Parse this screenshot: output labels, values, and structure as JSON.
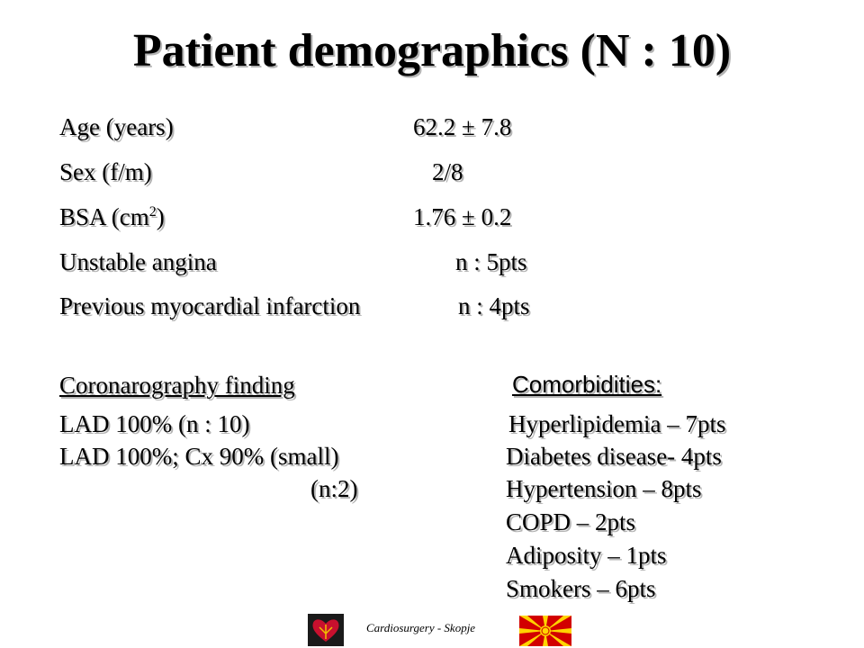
{
  "title": "Patient demographics (N : 10)",
  "demographics": [
    {
      "label_pre": "Age (years)",
      "sup": "",
      "label_post": "",
      "value": "62.2 ± 7.8"
    },
    {
      "label_pre": "Sex (f/m)",
      "sup": "",
      "label_post": "",
      "value": "2/8"
    },
    {
      "label_pre": "BSA (cm",
      "sup": "2",
      "label_post": ")",
      "value": "1.76 ± 0.2"
    },
    {
      "label_pre": "Unstable angina",
      "sup": "",
      "label_post": "",
      "value": "n : 5pts"
    },
    {
      "label_pre": "Previous myocardial infarction",
      "sup": "",
      "label_post": "",
      "value": "n : 4pts"
    }
  ],
  "coronarography": {
    "heading": "Coronarography finding ",
    "items": [
      "LAD 100% (n : 10)",
      "LAD 100%; Cx 90% (small)",
      "(n:2)"
    ]
  },
  "comorbidities": {
    "heading": "Comorbidities:",
    "items": [
      "Hyperlipidemia – 7pts",
      "Diabetes disease- 4pts",
      "Hypertension – 8pts",
      "COPD – 2pts",
      "Adiposity – 1pts",
      "Smokers – 6pts"
    ]
  },
  "footer": {
    "text": "Cardiosurgery - Skopje",
    "logo_icon": "heart-logo-icon",
    "flag_icon": "macedonia-flag-icon"
  },
  "colors": {
    "flag_red": "#d20000",
    "flag_yellow": "#ffd400",
    "logo_bg": "#1a1a1a",
    "heart": "#c8102e"
  }
}
